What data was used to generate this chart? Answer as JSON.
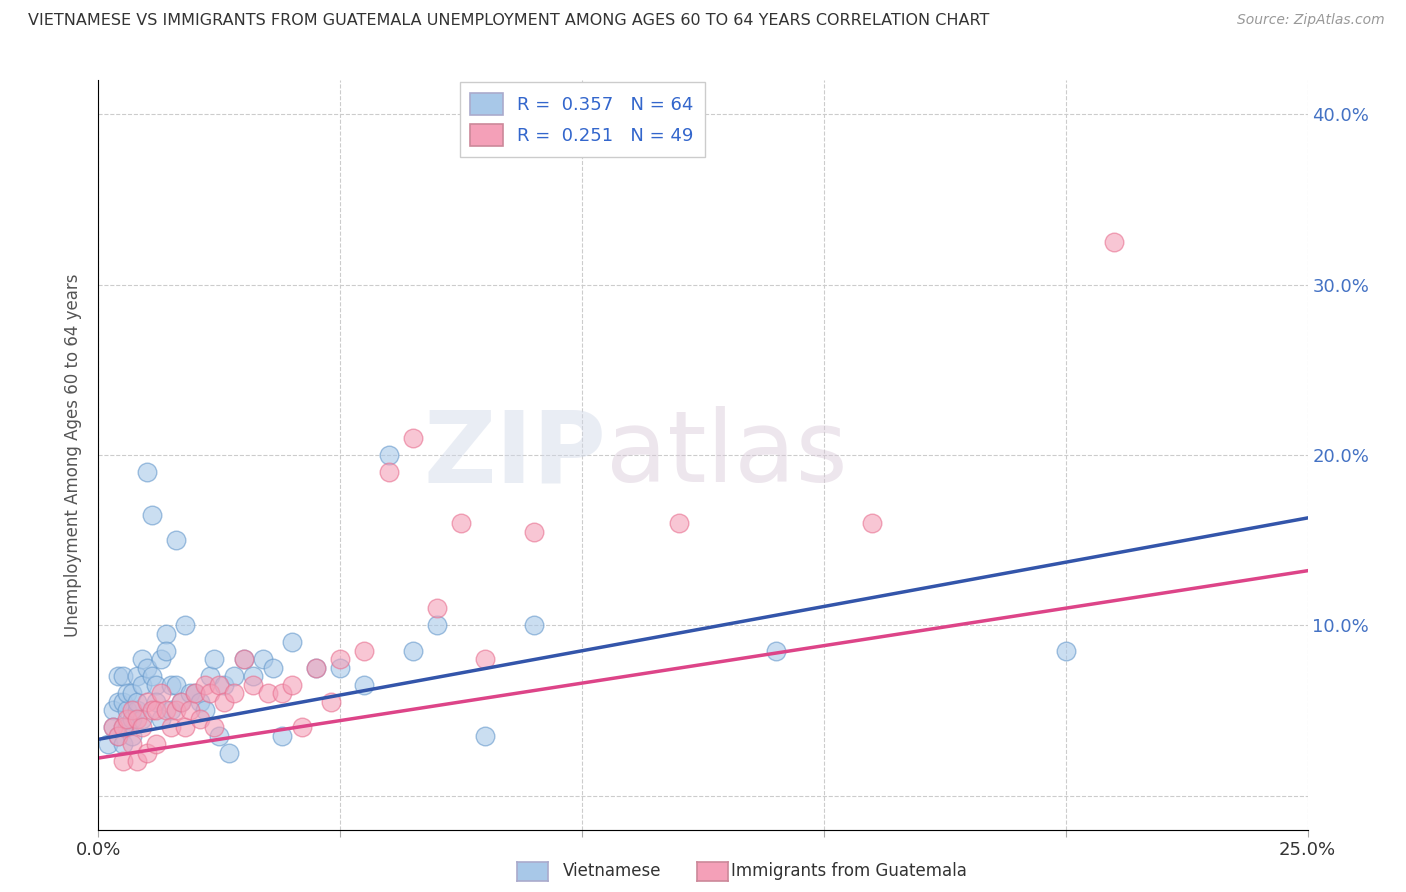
{
  "title": "VIETNAMESE VS IMMIGRANTS FROM GUATEMALA UNEMPLOYMENT AMONG AGES 60 TO 64 YEARS CORRELATION CHART",
  "source": "Source: ZipAtlas.com",
  "ylabel": "Unemployment Among Ages 60 to 64 years",
  "xlim": [
    0.0,
    0.25
  ],
  "ylim": [
    -0.02,
    0.42
  ],
  "xticks": [
    0.0,
    0.05,
    0.1,
    0.15,
    0.2,
    0.25
  ],
  "yticks": [
    0.0,
    0.1,
    0.2,
    0.3,
    0.4
  ],
  "series1_label": "Vietnamese",
  "series2_label": "Immigrants from Guatemala",
  "series1_color": "#a8c8e8",
  "series2_color": "#f4a0b8",
  "series1_edge": "#6699cc",
  "series2_edge": "#e87090",
  "trend1_color": "#3355aa",
  "trend2_color": "#dd4488",
  "background_color": "#ffffff",
  "grid_color": "#cccccc",
  "trend1_intercept": 0.033,
  "trend1_slope": 0.52,
  "trend2_intercept": 0.022,
  "trend2_slope": 0.44,
  "series1_x": [
    0.002,
    0.003,
    0.003,
    0.004,
    0.004,
    0.004,
    0.005,
    0.005,
    0.005,
    0.005,
    0.006,
    0.006,
    0.006,
    0.007,
    0.007,
    0.007,
    0.008,
    0.008,
    0.008,
    0.009,
    0.009,
    0.009,
    0.01,
    0.01,
    0.011,
    0.011,
    0.012,
    0.012,
    0.013,
    0.013,
    0.014,
    0.014,
    0.015,
    0.015,
    0.016,
    0.016,
    0.017,
    0.018,
    0.019,
    0.02,
    0.021,
    0.022,
    0.023,
    0.024,
    0.025,
    0.026,
    0.027,
    0.028,
    0.03,
    0.032,
    0.034,
    0.036,
    0.038,
    0.04,
    0.045,
    0.05,
    0.055,
    0.06,
    0.065,
    0.07,
    0.08,
    0.09,
    0.14,
    0.2
  ],
  "series1_y": [
    0.03,
    0.05,
    0.04,
    0.035,
    0.055,
    0.07,
    0.04,
    0.055,
    0.07,
    0.03,
    0.05,
    0.06,
    0.04,
    0.06,
    0.045,
    0.035,
    0.05,
    0.055,
    0.07,
    0.065,
    0.045,
    0.08,
    0.19,
    0.075,
    0.165,
    0.07,
    0.065,
    0.055,
    0.08,
    0.045,
    0.095,
    0.085,
    0.065,
    0.05,
    0.15,
    0.065,
    0.055,
    0.1,
    0.06,
    0.06,
    0.055,
    0.05,
    0.07,
    0.08,
    0.035,
    0.065,
    0.025,
    0.07,
    0.08,
    0.07,
    0.08,
    0.075,
    0.035,
    0.09,
    0.075,
    0.075,
    0.065,
    0.2,
    0.085,
    0.1,
    0.035,
    0.1,
    0.085,
    0.085
  ],
  "series2_x": [
    0.003,
    0.004,
    0.005,
    0.005,
    0.006,
    0.007,
    0.007,
    0.008,
    0.008,
    0.009,
    0.01,
    0.01,
    0.011,
    0.012,
    0.012,
    0.013,
    0.014,
    0.015,
    0.016,
    0.017,
    0.018,
    0.019,
    0.02,
    0.021,
    0.022,
    0.023,
    0.024,
    0.025,
    0.026,
    0.028,
    0.03,
    0.032,
    0.035,
    0.038,
    0.04,
    0.042,
    0.045,
    0.048,
    0.05,
    0.055,
    0.06,
    0.065,
    0.07,
    0.075,
    0.08,
    0.09,
    0.12,
    0.16,
    0.21
  ],
  "series2_y": [
    0.04,
    0.035,
    0.04,
    0.02,
    0.045,
    0.05,
    0.03,
    0.045,
    0.02,
    0.04,
    0.055,
    0.025,
    0.05,
    0.05,
    0.03,
    0.06,
    0.05,
    0.04,
    0.05,
    0.055,
    0.04,
    0.05,
    0.06,
    0.045,
    0.065,
    0.06,
    0.04,
    0.065,
    0.055,
    0.06,
    0.08,
    0.065,
    0.06,
    0.06,
    0.065,
    0.04,
    0.075,
    0.055,
    0.08,
    0.085,
    0.19,
    0.21,
    0.11,
    0.16,
    0.08,
    0.155,
    0.16,
    0.16,
    0.325
  ]
}
